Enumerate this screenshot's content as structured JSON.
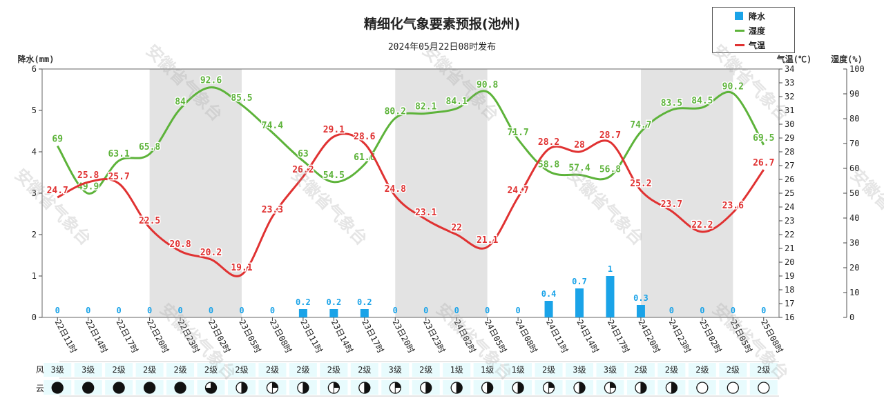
{
  "title": "精细化气象要素预报(池州)",
  "subtitle": "2024年05月22日08时发布",
  "watermark": "安徽省气象台",
  "legend": [
    {
      "label": "降水",
      "color": "#1aa3e8",
      "kind": "bar"
    },
    {
      "label": "湿度",
      "color": "#5db33a",
      "kind": "line"
    },
    {
      "label": "气温",
      "color": "#e03232",
      "kind": "line"
    }
  ],
  "axes": {
    "precip_label": "降水(mm)",
    "temp_label": "气温(℃)",
    "humid_label": "湿度(%)",
    "precip_range": [
      0,
      6
    ],
    "temp_range": [
      16,
      34
    ],
    "humid_range": [
      0,
      100
    ]
  },
  "row_labels": {
    "wind": "风力:",
    "cloud": "云量:"
  },
  "chart_data": {
    "type": "line",
    "x": [
      "22日11时",
      "22日14时",
      "22日17时",
      "22日20时",
      "22日23时",
      "23日02时",
      "23日05时",
      "23日08时",
      "23日11时",
      "23日14时",
      "23日17时",
      "23日20时",
      "23日23时",
      "24日02时",
      "24日05时",
      "24日08时",
      "24日11时",
      "24日14时",
      "24日17时",
      "24日20时",
      "24日23时",
      "25日02时",
      "25日05时",
      "25日08时"
    ],
    "series": [
      {
        "name": "降水",
        "type": "bar",
        "axis": "precip",
        "color": "#1aa3e8",
        "values": [
          0,
          0,
          0,
          0,
          0,
          0,
          0,
          0,
          0.2,
          0.2,
          0.2,
          0,
          0,
          0,
          0,
          0,
          0.4,
          0.7,
          1,
          0.3,
          0,
          0,
          0,
          0
        ]
      },
      {
        "name": "湿度",
        "type": "line",
        "axis": "humidity",
        "color": "#5db33a",
        "values": [
          69,
          49.9,
          63.1,
          65.8,
          84,
          92.6,
          85.5,
          74.4,
          63,
          54.5,
          61.6,
          80.2,
          82.1,
          84.1,
          90.8,
          71.7,
          58.8,
          57.4,
          56.8,
          74.7,
          83.5,
          84.5,
          90.2,
          69.5
        ]
      },
      {
        "name": "气温",
        "type": "line",
        "axis": "temperature",
        "color": "#e03232",
        "values": [
          24.7,
          25.8,
          25.7,
          22.5,
          20.8,
          20.2,
          19.1,
          23.3,
          26.2,
          29.1,
          28.6,
          24.8,
          23.1,
          22,
          21.1,
          24.7,
          28.2,
          28,
          28.7,
          25.2,
          23.7,
          22.2,
          23.6,
          26.7
        ]
      }
    ],
    "wind": [
      "3级",
      "3级",
      "2级",
      "2级",
      "2级",
      "2级",
      "2级",
      "2级",
      "2级",
      "2级",
      "2级",
      "3级",
      "2级",
      "1级",
      "1级",
      "1级",
      "2级",
      "3级",
      "3级",
      "2级",
      "2级",
      "2级",
      "2级",
      "2级"
    ],
    "cloud_cover": [
      1,
      1,
      1,
      1,
      1,
      0.75,
      0.5,
      0.25,
      0.5,
      0.25,
      0.5,
      0.25,
      0.5,
      0.5,
      0.5,
      0.5,
      0.25,
      0.5,
      0.25,
      0.5,
      0.5,
      0,
      0,
      0
    ],
    "night_bands": [
      [
        3,
        6
      ],
      [
        11,
        14
      ],
      [
        19,
        22
      ]
    ]
  }
}
